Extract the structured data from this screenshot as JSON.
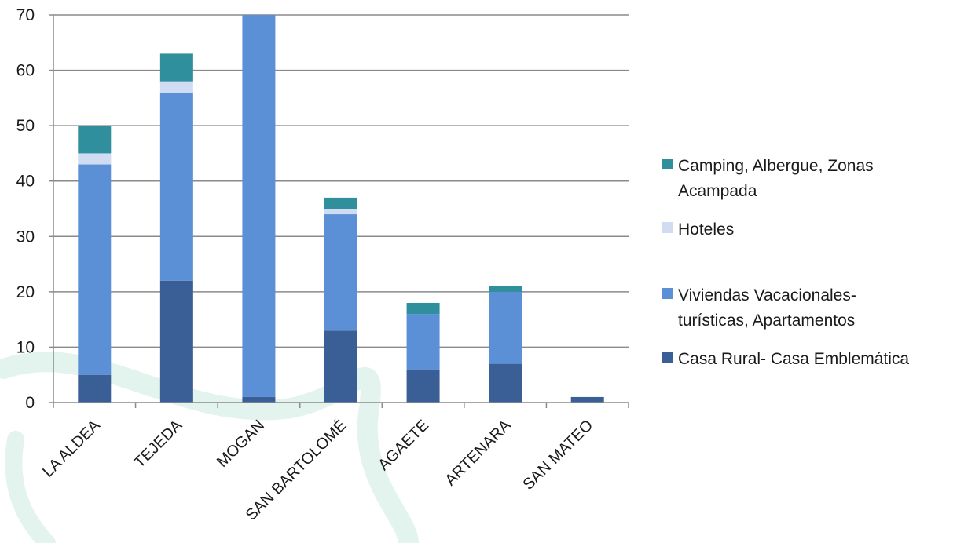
{
  "chart_data": {
    "type": "bar",
    "stacked": true,
    "categories": [
      "LA ALDEA",
      "TEJEDA",
      "MOGAN",
      "SAN BARTOLOMÉ",
      "AGAETE",
      "ARTENARA",
      "SAN MATEO"
    ],
    "series": [
      {
        "name": "Casa Rural- Casa Emblemática",
        "color": "#3a5f96",
        "values": [
          5,
          22,
          1,
          13,
          6,
          7,
          1
        ]
      },
      {
        "name": "Viviendas Vacacionales-turísticas, Apartamentos",
        "color": "#5b8fd6",
        "values": [
          38,
          34,
          69,
          21,
          10,
          13,
          0
        ]
      },
      {
        "name": "Hoteles",
        "color": "#cfdcf2",
        "values": [
          2,
          2,
          0,
          1,
          0,
          0,
          0
        ]
      },
      {
        "name": "Camping, Albergue, Zonas Acampada",
        "color": "#2f8f9c",
        "values": [
          5,
          5,
          0,
          2,
          2,
          1,
          0
        ]
      }
    ],
    "ylim": [
      0,
      70
    ],
    "yticks": [
      0,
      10,
      20,
      30,
      40,
      50,
      60,
      70
    ],
    "grid": true,
    "legend_position": "right"
  },
  "legend": [
    {
      "label": "Camping, Albergue, Zonas\nAcampada",
      "color": "#2f8f9c"
    },
    {
      "label": "Hoteles",
      "color": "#cfdcf2"
    },
    {
      "label": "Viviendas Vacacionales-\nturísticas, Apartamentos",
      "color": "#5b8fd6"
    },
    {
      "label": "Casa Rural- Casa Emblemática",
      "color": "#3a5f96"
    }
  ]
}
